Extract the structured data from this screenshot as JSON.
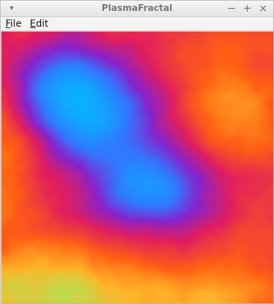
{
  "window": {
    "title": "PlasmaFractal",
    "menu_icon": "chevron-down-icon",
    "controls": {
      "minimize": "−",
      "maximize": "+",
      "close": "×"
    }
  },
  "menu": {
    "file": {
      "mnemonic": "F",
      "rest": "ile"
    },
    "edit": {
      "mnemonic": "E",
      "rest": "dit"
    }
  },
  "canvas": {
    "description_icon": "plasma-fractal-image"
  }
}
